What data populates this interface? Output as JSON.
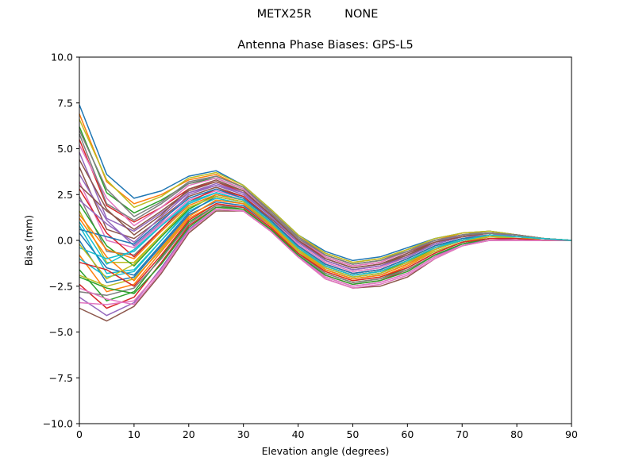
{
  "suptitle": "METX25R         NONE",
  "chart_data": {
    "type": "line",
    "title": "Antenna Phase Biases: GPS-L5",
    "xlabel": "Elevation angle (degrees)",
    "ylabel": "Bias (mm)",
    "xlim": [
      0,
      90
    ],
    "ylim": [
      -10,
      10
    ],
    "xticks": [
      0,
      10,
      20,
      30,
      40,
      50,
      60,
      70,
      80,
      90
    ],
    "xtick_labels": [
      "0",
      "10",
      "20",
      "30",
      "40",
      "50",
      "60",
      "70",
      "80",
      "90"
    ],
    "yticks": [
      10,
      7.5,
      5,
      2.5,
      0,
      -2.5,
      -5,
      -7.5,
      -10
    ],
    "ytick_labels": [
      "10.0",
      "7.5",
      "5.0",
      "2.5",
      "0.0",
      "−2.5",
      "−5.0",
      "−7.5",
      "−10.0"
    ],
    "grid": false,
    "palette": [
      "#1f77b4",
      "#ff7f0e",
      "#2ca02c",
      "#d62728",
      "#9467bd",
      "#8c564b",
      "#e377c2",
      "#7f7f7f",
      "#bcbd22",
      "#17becf"
    ],
    "x": [
      0,
      5,
      10,
      15,
      20,
      25,
      30,
      35,
      40,
      45,
      50,
      55,
      60,
      65,
      70,
      75,
      80,
      85,
      90
    ],
    "series": [
      {
        "values": [
          7.4,
          3.6,
          2.3,
          2.7,
          3.5,
          3.8,
          3.0,
          1.7,
          0.3,
          -0.6,
          -1.1,
          -0.9,
          -0.4,
          0.1,
          0.4,
          0.5,
          0.3,
          0.1,
          0.0
        ]
      },
      {
        "values": [
          6.9,
          3.2,
          2.0,
          2.5,
          3.3,
          3.6,
          2.9,
          1.6,
          0.2,
          -0.7,
          -1.2,
          -1.0,
          -0.5,
          0.0,
          0.4,
          0.5,
          0.3,
          0.1,
          0.0
        ]
      },
      {
        "values": [
          6.2,
          2.6,
          1.5,
          2.2,
          3.1,
          3.4,
          2.8,
          1.5,
          0.1,
          -0.8,
          -1.3,
          -1.1,
          -0.6,
          0.0,
          0.3,
          0.4,
          0.3,
          0.1,
          0.0
        ]
      },
      {
        "values": [
          5.5,
          1.9,
          1.0,
          1.8,
          2.8,
          3.2,
          2.6,
          1.4,
          0.0,
          -0.9,
          -1.4,
          -1.2,
          -0.6,
          -0.1,
          0.3,
          0.4,
          0.3,
          0.1,
          0.0
        ]
      },
      {
        "values": [
          4.8,
          1.2,
          0.5,
          1.5,
          2.6,
          3.0,
          2.5,
          1.3,
          -0.1,
          -1.0,
          -1.5,
          -1.3,
          -0.7,
          -0.1,
          0.3,
          0.4,
          0.3,
          0.1,
          0.0
        ]
      },
      {
        "values": [
          4.0,
          0.6,
          0.1,
          1.2,
          2.4,
          2.9,
          2.4,
          1.2,
          -0.1,
          -1.1,
          -1.6,
          -1.4,
          -0.8,
          -0.2,
          0.2,
          0.4,
          0.2,
          0.1,
          0.0
        ]
      },
      {
        "values": [
          3.2,
          0.0,
          -0.4,
          0.9,
          2.2,
          2.7,
          2.3,
          1.1,
          -0.2,
          -1.2,
          -1.7,
          -1.5,
          -0.9,
          -0.2,
          0.2,
          0.3,
          0.2,
          0.1,
          0.0
        ]
      },
      {
        "values": [
          2.4,
          -0.6,
          -0.8,
          0.6,
          2.0,
          2.6,
          2.2,
          1.0,
          -0.3,
          -1.3,
          -1.8,
          -1.6,
          -1.0,
          -0.3,
          0.1,
          0.3,
          0.2,
          0.1,
          0.0
        ]
      },
      {
        "values": [
          1.6,
          -1.2,
          -1.2,
          0.3,
          1.8,
          2.4,
          2.1,
          1.0,
          -0.4,
          -1.4,
          -1.9,
          -1.7,
          -1.1,
          -0.4,
          0.1,
          0.3,
          0.2,
          0.1,
          0.0
        ]
      },
      {
        "values": [
          0.8,
          -1.8,
          -1.6,
          0.0,
          1.6,
          2.3,
          2.0,
          0.9,
          -0.4,
          -1.5,
          -2.0,
          -1.8,
          -1.2,
          -0.5,
          0.0,
          0.2,
          0.2,
          0.1,
          0.0
        ]
      },
      {
        "values": [
          0.0,
          -2.3,
          -2.0,
          -0.3,
          1.4,
          2.1,
          1.9,
          0.8,
          -0.5,
          -1.6,
          -2.1,
          -1.9,
          -1.3,
          -0.5,
          0.0,
          0.2,
          0.2,
          0.1,
          0.0
        ]
      },
      {
        "values": [
          -0.8,
          -2.8,
          -2.4,
          -0.6,
          1.2,
          2.0,
          1.8,
          0.7,
          -0.6,
          -1.7,
          -2.2,
          -2.0,
          -1.4,
          -0.6,
          -0.1,
          0.2,
          0.1,
          0.1,
          0.0
        ]
      },
      {
        "values": [
          -1.6,
          -3.3,
          -2.8,
          -0.9,
          1.0,
          1.9,
          1.7,
          0.6,
          -0.7,
          -1.8,
          -2.3,
          -2.1,
          -1.5,
          -0.7,
          -0.1,
          0.1,
          0.1,
          0.1,
          0.0
        ]
      },
      {
        "values": [
          -2.4,
          -3.7,
          -3.1,
          -1.2,
          0.8,
          1.8,
          1.7,
          0.6,
          -0.8,
          -1.9,
          -2.4,
          -2.2,
          -1.6,
          -0.8,
          -0.2,
          0.1,
          0.1,
          0.0,
          0.0
        ]
      },
      {
        "values": [
          -3.1,
          -4.1,
          -3.4,
          -1.5,
          0.6,
          1.7,
          1.6,
          0.5,
          -0.8,
          -2.0,
          -2.5,
          -2.3,
          -1.8,
          -0.9,
          -0.2,
          0.0,
          0.1,
          0.0,
          0.0
        ]
      },
      {
        "values": [
          -3.7,
          -4.4,
          -3.6,
          -1.8,
          0.4,
          1.6,
          1.6,
          0.5,
          -0.9,
          -2.1,
          -2.6,
          -2.5,
          -2.0,
          -1.0,
          -0.3,
          0.0,
          0.0,
          0.0,
          0.0
        ]
      },
      {
        "values": [
          -3.4,
          -3.5,
          -3.3,
          -1.6,
          0.5,
          1.7,
          1.6,
          0.5,
          -0.9,
          -2.1,
          -2.6,
          -2.4,
          -1.9,
          -1.0,
          -0.3,
          0.0,
          0.0,
          0.0,
          0.0
        ]
      },
      {
        "values": [
          -2.8,
          -3.0,
          -2.6,
          -1.0,
          0.9,
          1.9,
          1.8,
          0.7,
          -0.7,
          -1.8,
          -2.3,
          -2.1,
          -1.6,
          -0.8,
          -0.2,
          0.1,
          0.1,
          0.0,
          0.0
        ]
      },
      {
        "values": [
          -1.9,
          -2.5,
          -2.1,
          -0.5,
          1.3,
          2.2,
          2.0,
          0.8,
          -0.6,
          -1.6,
          -2.1,
          -1.9,
          -1.3,
          -0.6,
          -0.1,
          0.2,
          0.1,
          0.1,
          0.0
        ]
      },
      {
        "values": [
          -1.0,
          -2.0,
          -1.7,
          0.0,
          1.7,
          2.5,
          2.2,
          1.0,
          -0.4,
          -1.4,
          -1.9,
          -1.7,
          -1.1,
          -0.4,
          0.0,
          0.3,
          0.2,
          0.1,
          0.0
        ]
      },
      {
        "values": [
          0.4,
          -1.5,
          -1.9,
          -0.2,
          1.5,
          2.4,
          2.1,
          0.9,
          -0.5,
          -1.5,
          -2.0,
          -1.8,
          -1.2,
          -0.5,
          0.0,
          0.2,
          0.2,
          0.1,
          0.0
        ]
      },
      {
        "values": [
          1.2,
          -0.9,
          -2.2,
          -0.4,
          1.3,
          2.2,
          2.0,
          0.8,
          -0.5,
          -1.6,
          -2.1,
          -1.9,
          -1.3,
          -0.5,
          0.0,
          0.2,
          0.2,
          0.1,
          0.0
        ]
      },
      {
        "values": [
          2.0,
          -0.3,
          -1.4,
          0.2,
          1.7,
          2.5,
          2.2,
          1.0,
          -0.4,
          -1.4,
          -1.9,
          -1.7,
          -1.2,
          -0.4,
          0.0,
          0.3,
          0.2,
          0.1,
          0.0
        ]
      },
      {
        "values": [
          2.8,
          0.4,
          -0.9,
          0.6,
          2.1,
          2.8,
          2.4,
          1.1,
          -0.3,
          -1.3,
          -1.8,
          -1.6,
          -1.0,
          -0.3,
          0.1,
          0.3,
          0.2,
          0.1,
          0.0
        ]
      },
      {
        "values": [
          3.6,
          1.1,
          -0.3,
          1.0,
          2.5,
          3.0,
          2.6,
          1.3,
          -0.1,
          -1.1,
          -1.6,
          -1.4,
          -0.9,
          -0.2,
          0.2,
          0.4,
          0.2,
          0.1,
          0.0
        ]
      },
      {
        "values": [
          4.4,
          1.7,
          0.3,
          1.4,
          2.8,
          3.3,
          2.7,
          1.4,
          0.0,
          -1.0,
          -1.5,
          -1.3,
          -0.7,
          -0.1,
          0.2,
          0.4,
          0.3,
          0.1,
          0.0
        ]
      },
      {
        "values": [
          5.2,
          2.3,
          0.8,
          1.8,
          3.0,
          3.4,
          2.8,
          1.5,
          0.1,
          -0.9,
          -1.4,
          -1.2,
          -0.6,
          0.0,
          0.3,
          0.4,
          0.3,
          0.1,
          0.0
        ]
      },
      {
        "values": [
          6.0,
          2.8,
          1.3,
          2.1,
          3.2,
          3.5,
          2.9,
          1.6,
          0.2,
          -0.8,
          -1.3,
          -1.1,
          -0.5,
          0.0,
          0.3,
          0.5,
          0.3,
          0.1,
          0.0
        ]
      },
      {
        "values": [
          6.6,
          3.3,
          1.8,
          2.4,
          3.4,
          3.7,
          3.0,
          1.7,
          0.3,
          -0.7,
          -1.2,
          -1.0,
          -0.5,
          0.1,
          0.4,
          0.5,
          0.3,
          0.1,
          0.0
        ]
      },
      {
        "values": [
          -0.4,
          -1.0,
          -0.6,
          0.8,
          2.1,
          2.6,
          2.2,
          1.0,
          -0.4,
          -1.4,
          -1.9,
          -1.7,
          -1.1,
          -0.4,
          0.1,
          0.3,
          0.2,
          0.1,
          0.0
        ]
      },
      {
        "values": [
          0.6,
          0.2,
          -0.2,
          1.1,
          2.3,
          2.8,
          2.3,
          1.1,
          -0.3,
          -1.3,
          -1.8,
          -1.6,
          -1.0,
          -0.3,
          0.1,
          0.3,
          0.2,
          0.1,
          0.0
        ]
      },
      {
        "values": [
          1.4,
          -0.5,
          -1.0,
          0.5,
          1.9,
          2.5,
          2.2,
          1.0,
          -0.4,
          -1.4,
          -1.9,
          -1.7,
          -1.1,
          -0.4,
          0.0,
          0.3,
          0.2,
          0.1,
          0.0
        ]
      },
      {
        "values": [
          -2.0,
          -2.6,
          -2.9,
          -1.3,
          0.7,
          1.8,
          1.7,
          0.6,
          -0.8,
          -1.9,
          -2.4,
          -2.2,
          -1.7,
          -0.8,
          -0.2,
          0.1,
          0.1,
          0.0,
          0.0
        ]
      },
      {
        "values": [
          -1.2,
          -1.6,
          -2.5,
          -0.8,
          1.1,
          2.0,
          1.8,
          0.7,
          -0.7,
          -1.7,
          -2.2,
          -2.0,
          -1.5,
          -0.7,
          -0.1,
          0.1,
          0.1,
          0.0,
          0.0
        ]
      },
      {
        "values": [
          2.2,
          0.9,
          -0.1,
          1.3,
          2.6,
          3.1,
          2.6,
          1.3,
          -0.1,
          -1.1,
          -1.6,
          -1.4,
          -0.9,
          -0.2,
          0.2,
          0.4,
          0.2,
          0.1,
          0.0
        ]
      },
      {
        "values": [
          3.0,
          1.6,
          0.6,
          1.6,
          2.7,
          3.2,
          2.7,
          1.4,
          0.0,
          -1.0,
          -1.5,
          -1.3,
          -0.8,
          -0.1,
          0.2,
          0.4,
          0.3,
          0.1,
          0.0
        ]
      },
      {
        "values": [
          -2.6,
          -3.2,
          -3.5,
          -1.7,
          0.5,
          1.7,
          1.6,
          0.5,
          -0.9,
          -2.0,
          -2.5,
          -2.3,
          -1.8,
          -0.9,
          -0.3,
          0.0,
          0.0,
          0.0,
          0.0
        ]
      },
      {
        "values": [
          5.8,
          2.0,
          1.1,
          2.0,
          3.1,
          3.5,
          2.9,
          1.5,
          0.1,
          -0.8,
          -1.3,
          -1.1,
          -0.6,
          0.0,
          0.3,
          0.4,
          0.3,
          0.1,
          0.0
        ]
      },
      {
        "values": [
          -0.2,
          -2.1,
          -1.3,
          0.3,
          1.8,
          2.4,
          2.1,
          0.9,
          -0.5,
          -1.5,
          -2.0,
          -1.8,
          -1.2,
          -0.5,
          0.0,
          0.2,
          0.2,
          0.1,
          0.0
        ]
      },
      {
        "values": [
          1.0,
          -1.3,
          -0.5,
          0.8,
          2.0,
          2.6,
          2.2,
          1.0,
          -0.4,
          -1.4,
          -1.9,
          -1.7,
          -1.1,
          -0.4,
          0.0,
          0.3,
          0.2,
          0.1,
          0.0
        ]
      }
    ]
  }
}
